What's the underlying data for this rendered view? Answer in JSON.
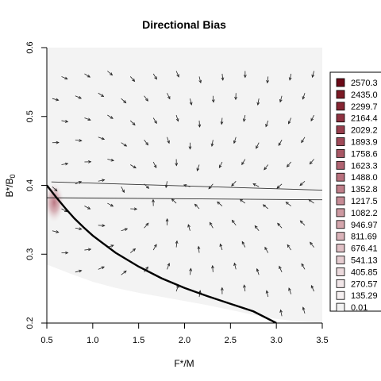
{
  "chart_data": {
    "type": "heatmap",
    "title": "Directional Bias",
    "xlabel": "F*/M",
    "ylabel_main": "B*/B",
    "ylabel_sub": "0",
    "xlim": [
      0.5,
      3.5
    ],
    "ylim": [
      0.2,
      0.6
    ],
    "x_ticks": [
      0.5,
      1.0,
      1.5,
      2.0,
      2.5,
      3.0,
      3.5
    ],
    "x_tick_labels": [
      "0.5",
      "1.0",
      "1.5",
      "2.0",
      "2.5",
      "3.0",
      "3.5"
    ],
    "y_ticks": [
      0.2,
      0.3,
      0.4,
      0.5,
      0.6
    ],
    "y_tick_labels": [
      "0.2",
      "0.3",
      "0.4",
      "0.5",
      "0.6"
    ],
    "legend": {
      "position": "right",
      "labels": [
        "2570.3",
        "2435.0",
        "2299.7",
        "2164.4",
        "2029.2",
        "1893.9",
        "1758.6",
        "1623.3",
        "1488.0",
        "1352.8",
        "1217.5",
        "1082.2",
        "946.97",
        "811.69",
        "676.41",
        "541.13",
        "405.85",
        "270.57",
        "135.29",
        "0.01"
      ],
      "colors": [
        "#6b0a17",
        "#7b1a25",
        "#862633",
        "#8f3241",
        "#983e4d",
        "#a04a59",
        "#a85765",
        "#b06371",
        "#b8707d",
        "#bf7e89",
        "#c68b95",
        "#cd99a1",
        "#d4a6ad",
        "#dab3b9",
        "#e0c0c5",
        "#e6cdd1",
        "#ecdadd",
        "#f1e6e8",
        "#f6f0f1",
        "#f3f3f3"
      ]
    },
    "hotspot": {
      "x": 0.58,
      "y": 0.375,
      "value": 2570.3
    },
    "boundary_curve": [
      {
        "x": 0.5,
        "y": 0.4
      },
      {
        "x": 0.6,
        "y": 0.383
      },
      {
        "x": 0.7,
        "y": 0.367
      },
      {
        "x": 0.8,
        "y": 0.352
      },
      {
        "x": 0.9,
        "y": 0.339
      },
      {
        "x": 1.0,
        "y": 0.327
      },
      {
        "x": 1.25,
        "y": 0.302
      },
      {
        "x": 1.5,
        "y": 0.282
      },
      {
        "x": 1.75,
        "y": 0.265
      },
      {
        "x": 2.0,
        "y": 0.251
      },
      {
        "x": 2.25,
        "y": 0.239
      },
      {
        "x": 2.5,
        "y": 0.228
      },
      {
        "x": 2.75,
        "y": 0.217
      },
      {
        "x": 3.0,
        "y": 0.2
      }
    ],
    "trajectories": [
      {
        "x0": 0.55,
        "y0": 0.405,
        "x1": 3.5,
        "y1": 0.393
      },
      {
        "x0": 0.5,
        "y0": 0.382,
        "x1": 3.5,
        "y1": 0.379
      }
    ],
    "feasible_region_edge": [
      {
        "x": 0.5,
        "y": 0.285
      },
      {
        "x": 0.75,
        "y": 0.272
      },
      {
        "x": 1.0,
        "y": 0.26
      },
      {
        "x": 1.25,
        "y": 0.251
      },
      {
        "x": 1.5,
        "y": 0.244
      },
      {
        "x": 1.75,
        "y": 0.238
      },
      {
        "x": 2.0,
        "y": 0.232
      },
      {
        "x": 2.25,
        "y": 0.226
      },
      {
        "x": 2.5,
        "y": 0.219
      },
      {
        "x": 2.75,
        "y": 0.212
      },
      {
        "x": 3.0,
        "y": 0.206
      },
      {
        "x": 3.25,
        "y": 0.202
      },
      {
        "x": 3.5,
        "y": 0.2
      }
    ],
    "grid": false,
    "x_axis_position": "bottom",
    "y_axis_position": "left"
  }
}
